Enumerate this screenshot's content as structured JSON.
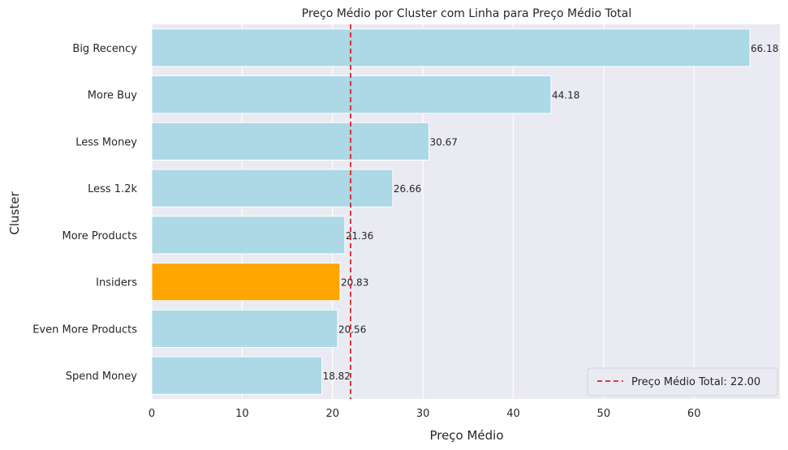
{
  "chart_data": {
    "type": "bar",
    "orientation": "horizontal",
    "title": "Preço Médio por Cluster com Linha para Preço Médio Total",
    "xlabel": "Preço Médio",
    "ylabel": "Cluster",
    "categories": [
      "Big Recency",
      "More Buy",
      "Less Money",
      "Less 1.2k",
      "More Products",
      "Insiders",
      "Even More Products",
      "Spend Money"
    ],
    "values": [
      66.18,
      44.18,
      30.67,
      26.66,
      21.36,
      20.83,
      20.56,
      18.82
    ],
    "value_labels": [
      "66.18",
      "44.18",
      "30.67",
      "26.66",
      "21.36",
      "20.83",
      "20.56",
      "18.82"
    ],
    "highlight_category": "Insiders",
    "xlim": [
      0,
      69.5
    ],
    "xticks": [
      0,
      10,
      20,
      30,
      40,
      50,
      60
    ],
    "xtick_labels": [
      "0",
      "10",
      "20",
      "30",
      "40",
      "50",
      "60"
    ],
    "reference_line": {
      "value": 22.0,
      "label": "Preço Médio Total: 22.00",
      "color": "#d62728",
      "style": "dashed"
    },
    "legend_position": "lower-right",
    "grid": true,
    "colors": {
      "bar": "#add8e6",
      "highlight": "#ffa500",
      "background": "#eaeaf2",
      "grid": "#ffffff"
    }
  }
}
